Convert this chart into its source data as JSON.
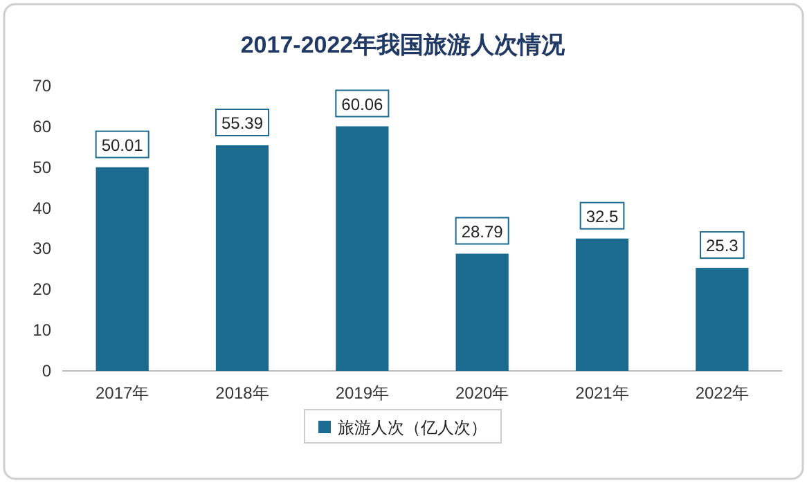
{
  "chart_data": {
    "type": "bar",
    "title": "2017-2022年我国旅游人次情况",
    "categories": [
      "2017年",
      "2018年",
      "2019年",
      "2020年",
      "2021年",
      "2022年"
    ],
    "series": [
      {
        "name": "旅游人次（亿人次）",
        "color": "#1b6a8f",
        "values": [
          50.01,
          55.39,
          60.06,
          28.79,
          32.5,
          25.3
        ]
      }
    ],
    "ylim": [
      0,
      70
    ],
    "yticks": [
      0,
      10,
      20,
      30,
      40,
      50,
      60,
      70
    ],
    "data_labels": true,
    "legend": "bottom",
    "grid": false
  }
}
